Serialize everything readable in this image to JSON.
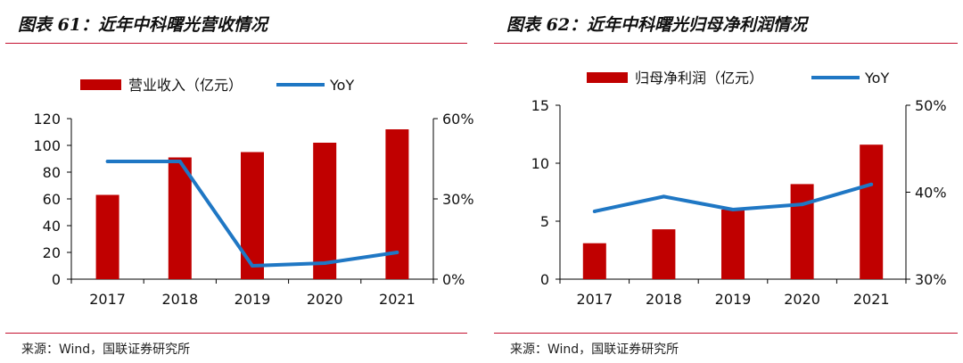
{
  "chart_data": [
    {
      "type": "bar+line",
      "title": "图表 61：近年中科曙光营收情况",
      "categories": [
        "2017",
        "2018",
        "2019",
        "2020",
        "2021"
      ],
      "series": [
        {
          "name": "营业收入（亿元）",
          "kind": "bar",
          "axis": "left",
          "values": [
            63,
            91,
            95,
            102,
            112
          ]
        },
        {
          "name": "YoY",
          "kind": "line",
          "axis": "right",
          "values": [
            0.44,
            0.44,
            0.05,
            0.06,
            0.1
          ]
        }
      ],
      "y_left": {
        "min": 0,
        "max": 120,
        "ticks": [
          "0",
          "20",
          "40",
          "60",
          "80",
          "100",
          "120"
        ]
      },
      "y_right": {
        "min": 0,
        "max": 0.6,
        "ticks": [
          "0%",
          "30%",
          "60%"
        ]
      },
      "legend_position": "top-center",
      "source": "来源：Wind，国联证券研究所"
    },
    {
      "type": "bar+line",
      "title": "图表 62：近年中科曙光归母净利润情况",
      "categories": [
        "2017",
        "2018",
        "2019",
        "2020",
        "2021"
      ],
      "series": [
        {
          "name": "归母净利润（亿元）",
          "kind": "bar",
          "axis": "left",
          "values": [
            3.1,
            4.3,
            6.0,
            8.2,
            11.6
          ]
        },
        {
          "name": "YoY",
          "kind": "line",
          "axis": "right",
          "values": [
            0.378,
            0.395,
            0.38,
            0.386,
            0.409
          ]
        }
      ],
      "y_left": {
        "min": 0,
        "max": 15,
        "ticks": [
          "0",
          "5",
          "10",
          "15"
        ]
      },
      "y_right": {
        "min": 0.3,
        "max": 0.5,
        "ticks": [
          "30%",
          "40%",
          "50%"
        ]
      },
      "legend_position": "top-center",
      "source": "来源：Wind，国联证券研究所"
    }
  ],
  "colors": {
    "bar": "#c00000",
    "line": "#1f77c4",
    "rule": "#c41230",
    "axis": "#000000"
  }
}
